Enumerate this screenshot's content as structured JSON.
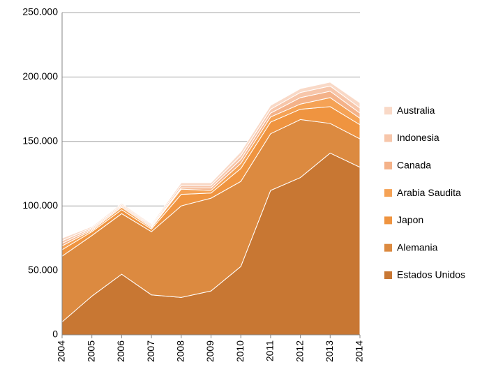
{
  "chart_data": {
    "type": "stacked_area",
    "categories": [
      "2004",
      "2005",
      "2006",
      "2007",
      "2008",
      "2009",
      "2010",
      "2011",
      "2012",
      "2013",
      "2014"
    ],
    "series": [
      {
        "name": "Estados Unidos",
        "color": "#c87733",
        "values": [
          10000,
          30000,
          47000,
          31000,
          29000,
          34000,
          53000,
          112000,
          122000,
          141000,
          130000
        ]
      },
      {
        "name": "Alemania",
        "color": "#dc8a40",
        "values": [
          51000,
          47000,
          47000,
          49000,
          71000,
          72000,
          66000,
          44000,
          45000,
          23000,
          22000
        ]
      },
      {
        "name": "Japon",
        "color": "#ef9440",
        "values": [
          5000,
          3000,
          3000,
          2000,
          9000,
          4000,
          10000,
          9000,
          8000,
          13000,
          11000
        ]
      },
      {
        "name": "Arabia Saudita",
        "color": "#f5a255",
        "values": [
          3000,
          1000,
          2000,
          1000,
          4000,
          2000,
          4000,
          4000,
          4000,
          7000,
          5000
        ]
      },
      {
        "name": "Canada",
        "color": "#f4b289",
        "values": [
          2000,
          1000,
          1000,
          1000,
          1000,
          2000,
          3000,
          3000,
          5000,
          5000,
          4000
        ]
      },
      {
        "name": "Indonesia",
        "color": "#f7c6aa",
        "values": [
          2000,
          1000,
          1000,
          1000,
          2000,
          2000,
          3000,
          3000,
          4000,
          4000,
          4000
        ]
      },
      {
        "name": "Australia",
        "color": "#f9d9c7",
        "values": [
          2000,
          1000,
          1000,
          1000,
          2000,
          2000,
          3000,
          3000,
          3000,
          3000,
          4000
        ]
      }
    ],
    "ylim": [
      0,
      250000
    ],
    "yticks": [
      0,
      {
        "value": 50000,
        "label": "50.000"
      },
      {
        "value": 100000,
        "label": "100.000"
      },
      {
        "value": 150000,
        "label": "150.000"
      },
      {
        "value": 200000,
        "label": "200.000"
      },
      {
        "value": 250000,
        "label": "250.000"
      }
    ],
    "grid": true,
    "legend": "right"
  }
}
